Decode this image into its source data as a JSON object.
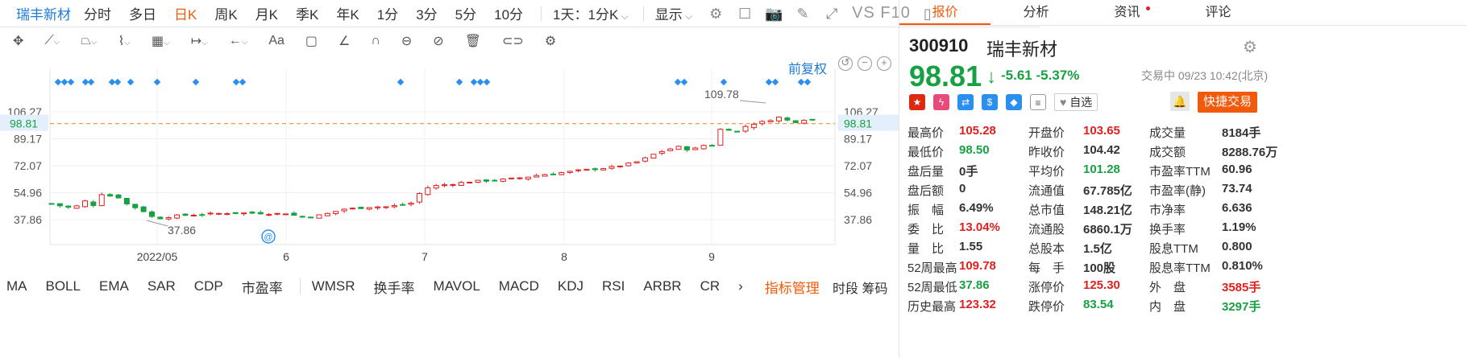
{
  "topbar": {
    "stock_name": "瑞丰新材",
    "periods": [
      "分时",
      "多日",
      "日K",
      "周K",
      "月K",
      "季K",
      "年K",
      "1分",
      "3分",
      "5分",
      "10分"
    ],
    "active_period": "日K",
    "range_select": "1天：1分K",
    "display_select": "显示",
    "vs_label": "VS F10"
  },
  "toolbar": {
    "text_label": "Aa"
  },
  "chart": {
    "fuquan_label": "前复权",
    "y_ticks": [
      "106.27",
      "89.17",
      "72.07",
      "54.96",
      "37.86"
    ],
    "current_price_label": "98.81",
    "x_labels": [
      "2022/05",
      "6",
      "7",
      "8",
      "9"
    ],
    "high_marker": "109.78",
    "low_marker": "37.86"
  },
  "indicators": {
    "items": [
      "MA",
      "BOLL",
      "EMA",
      "SAR",
      "CDP",
      "市盈率",
      "WMSR",
      "换手率",
      "MAVOL",
      "MACD",
      "KDJ",
      "RSI",
      "ARBR",
      "CR"
    ],
    "manage_label": "指标管理",
    "footer": "时段 筹码"
  },
  "panel": {
    "tabs": [
      "报价",
      "分析",
      "资讯",
      "评论"
    ],
    "active_tab": "报价",
    "code": "300910",
    "name": "瑞丰新材",
    "price": "98.81",
    "change": "-5.61",
    "change_pct": "-5.37%",
    "status": "交易中 09/23 10:42(北京)",
    "watch_label": "自选",
    "quick_trade": "快捷交易",
    "stats": [
      [
        {
          "label": "最高价",
          "value": "105.28",
          "color": "red"
        },
        {
          "label": "开盘价",
          "value": "103.65",
          "color": "red"
        },
        {
          "label": "成交量",
          "value": "8184手",
          "color": "dark"
        }
      ],
      [
        {
          "label": "最低价",
          "value": "98.50",
          "color": "green"
        },
        {
          "label": "昨收价",
          "value": "104.42",
          "color": "dark"
        },
        {
          "label": "成交额",
          "value": "8288.76万",
          "color": "dark"
        }
      ],
      [
        {
          "label": "盘后量",
          "value": "0手",
          "color": "dark"
        },
        {
          "label": "平均价",
          "value": "101.28",
          "color": "green"
        },
        {
          "label": "市盈率TTM",
          "value": "60.96",
          "color": "dark"
        }
      ],
      [
        {
          "label": "盘后额",
          "value": "0",
          "color": "dark"
        },
        {
          "label": "流通值",
          "value": "67.785亿",
          "color": "dark"
        },
        {
          "label": "市盈率(静)",
          "value": "73.74",
          "color": "dark"
        }
      ],
      [
        {
          "label": "振　幅",
          "value": "6.49%",
          "color": "dark"
        },
        {
          "label": "总市值",
          "value": "148.21亿",
          "color": "dark"
        },
        {
          "label": "市净率",
          "value": "6.636",
          "color": "dark"
        }
      ],
      [
        {
          "label": "委　比",
          "value": "13.04%",
          "color": "red"
        },
        {
          "label": "流通股",
          "value": "6860.1万",
          "color": "dark"
        },
        {
          "label": "换手率",
          "value": "1.19%",
          "color": "dark"
        }
      ],
      [
        {
          "label": "量　比",
          "value": "1.55",
          "color": "dark"
        },
        {
          "label": "总股本",
          "value": "1.5亿",
          "color": "dark"
        },
        {
          "label": "股息TTM",
          "value": "0.800",
          "color": "dark"
        }
      ],
      [
        {
          "label": "52周最高",
          "value": "109.78",
          "color": "red"
        },
        {
          "label": "每　手",
          "value": "100股",
          "color": "dark"
        },
        {
          "label": "股息率TTM",
          "value": "0.810%",
          "color": "dark"
        }
      ],
      [
        {
          "label": "52周最低",
          "value": "37.86",
          "color": "green"
        },
        {
          "label": "涨停价",
          "value": "125.30",
          "color": "red"
        },
        {
          "label": "外　盘",
          "value": "3585手",
          "color": "red"
        }
      ],
      [
        {
          "label": "历史最高",
          "value": "123.32",
          "color": "red"
        },
        {
          "label": "跌停价",
          "value": "83.54",
          "color": "green"
        },
        {
          "label": "内　盘",
          "value": "3297手",
          "color": "green"
        }
      ]
    ]
  },
  "colors": {
    "up": "#e02020",
    "down": "#17a142",
    "accent": "#f25a0b",
    "link": "#1e7ad6"
  }
}
